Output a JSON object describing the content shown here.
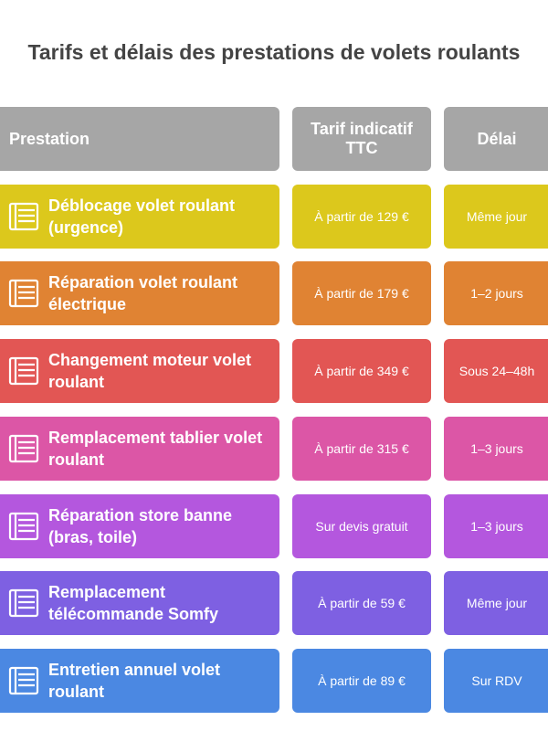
{
  "title": "Tarifs et délais des prestations de volets roulants",
  "table": {
    "header": [
      "Prestation",
      "Tarif indicatif TTC",
      "Délai"
    ],
    "rows": [
      {
        "cells": [
          "Déblocage volet roulant (urgence)",
          "À partir de 129 €",
          "Même jour"
        ],
        "color": "#dcc81c"
      },
      {
        "cells": [
          "Réparation volet roulant électrique",
          "À partir de 179 €",
          "1–2 jours"
        ],
        "color": "#e08333"
      },
      {
        "cells": [
          "Changement moteur volet roulant",
          "À partir de 349 €",
          "Sous 24–48h"
        ],
        "color": "#e25654"
      },
      {
        "cells": [
          "Remplacement tablier volet roulant",
          "À partir de 315 €",
          "1–3 jours"
        ],
        "color": "#dc56a6"
      },
      {
        "cells": [
          "Réparation store banne (bras, toile)",
          "Sur devis gratuit",
          "1–3 jours"
        ],
        "color": "#b457de"
      },
      {
        "cells": [
          "Remplacement télécommande Somfy",
          "À partir de 59 €",
          "Même jour"
        ],
        "color": "#7e60e2"
      },
      {
        "cells": [
          "Entretien annuel volet roulant",
          "À partir de 89 €",
          "Sur RDV"
        ],
        "color": "#4b88e2"
      }
    ]
  }
}
